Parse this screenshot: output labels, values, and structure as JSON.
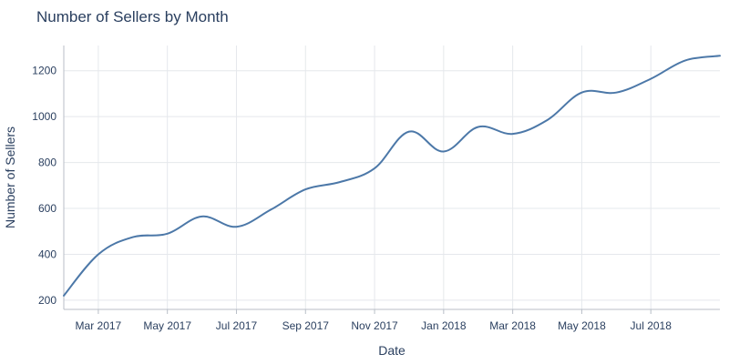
{
  "chart_data": {
    "type": "line",
    "title": "Number of Sellers by Month",
    "xlabel": "Date",
    "ylabel": "Number of Sellers",
    "x_ticks": [
      "Mar 2017",
      "May 2017",
      "Jul 2017",
      "Sep 2017",
      "Nov 2017",
      "Jan 2018",
      "Mar 2018",
      "May 2018",
      "Jul 2018"
    ],
    "y_ticks": [
      200,
      400,
      600,
      800,
      1000,
      1200
    ],
    "ylim": [
      160,
      1310
    ],
    "xlim": [
      "2017-02-01",
      "2018-09-01"
    ],
    "grid": true,
    "legend": "none",
    "line_color": "#4c78a8",
    "series": [
      {
        "x": [
          "2017-02-01",
          "2017-03-01",
          "2017-04-01",
          "2017-05-01",
          "2017-06-01",
          "2017-07-01",
          "2017-08-01",
          "2017-09-01",
          "2017-10-01",
          "2017-11-01",
          "2017-12-01",
          "2018-01-01",
          "2018-02-01",
          "2018-03-01",
          "2018-04-01",
          "2018-05-01",
          "2018-06-01",
          "2018-07-01",
          "2018-08-01",
          "2018-09-01"
        ],
        "values": [
          220,
          400,
          475,
          490,
          565,
          520,
          595,
          683,
          715,
          775,
          935,
          848,
          955,
          925,
          985,
          1105,
          1105,
          1165,
          1245,
          1265
        ]
      }
    ]
  }
}
